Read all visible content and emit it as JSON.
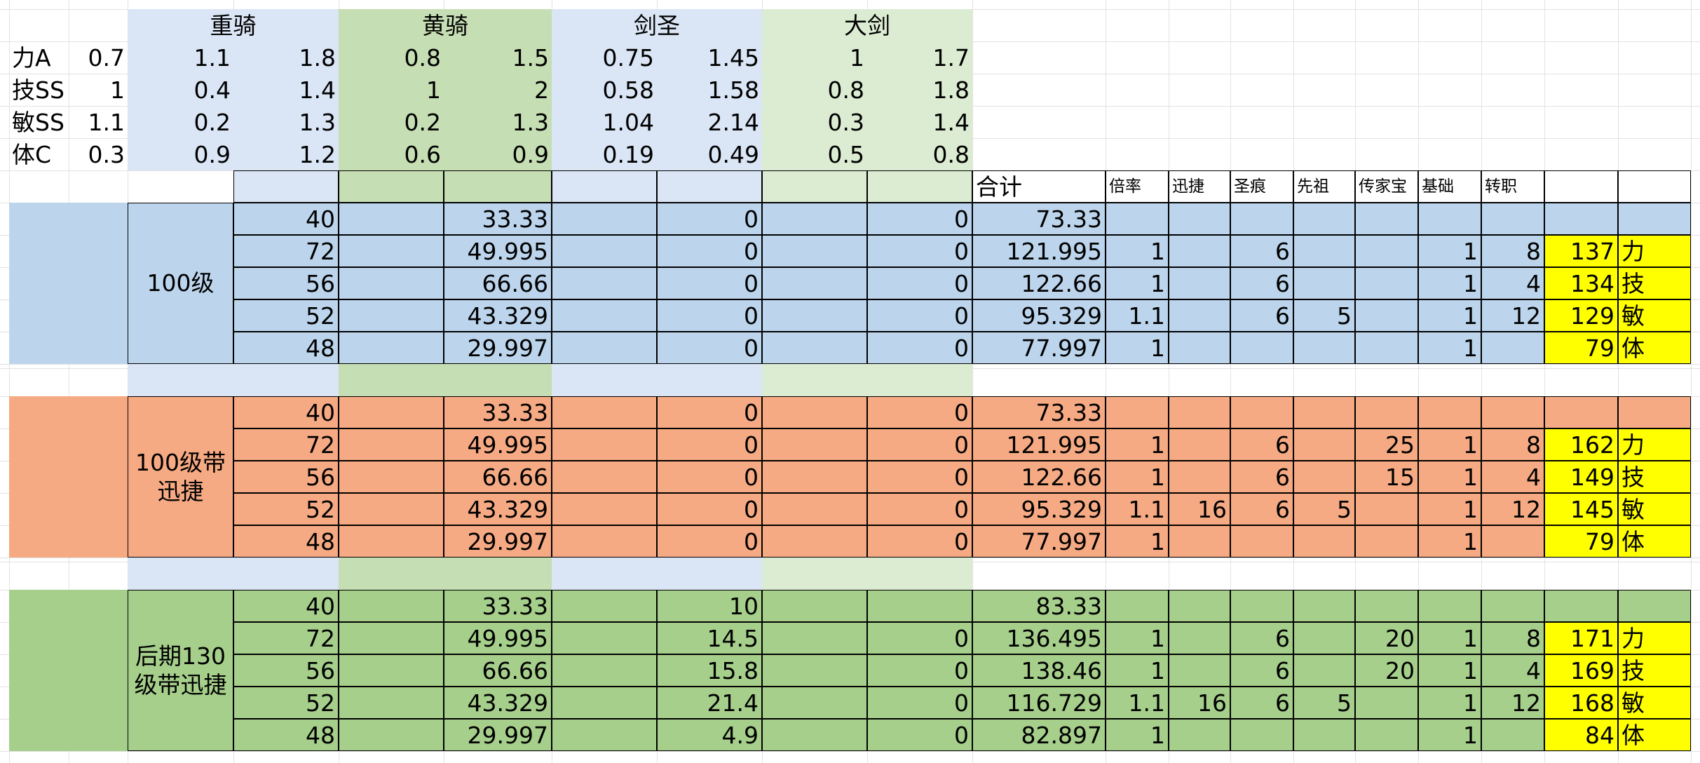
{
  "colors": {
    "blue_light": "#dae5f5",
    "green_light": "#c6deb3",
    "green_lighter": "#dcecd2",
    "blue_block": "#bcd5ec",
    "orange_block": "#f6aa83",
    "green_block": "#a6cf8b",
    "yellow": "#ffff00",
    "grid": "#e2e2e2",
    "border": "#000000"
  },
  "header": {
    "classes": [
      "重骑",
      "黄骑",
      "剑圣",
      "大剑"
    ]
  },
  "attributes": [
    {
      "label": "力A",
      "coef": "0.7",
      "vals": [
        "1.1",
        "1.8",
        "0.8",
        "1.5",
        "0.75",
        "1.45",
        "1",
        "1.7"
      ]
    },
    {
      "label": "技SS",
      "coef": "1",
      "vals": [
        "0.4",
        "1.4",
        "1",
        "2",
        "0.58",
        "1.58",
        "0.8",
        "1.8"
      ]
    },
    {
      "label": "敏SS",
      "coef": "1.1",
      "vals": [
        "0.2",
        "1.3",
        "0.2",
        "1.3",
        "1.04",
        "2.14",
        "0.3",
        "1.4"
      ]
    },
    {
      "label": "体C",
      "coef": "0.3",
      "vals": [
        "0.9",
        "1.2",
        "0.6",
        "0.9",
        "0.19",
        "0.49",
        "0.5",
        "0.8"
      ]
    }
  ],
  "columns": {
    "total": "合计",
    "mult": "倍率",
    "swift": "迅捷",
    "mark": "圣痕",
    "ancestor": "先祖",
    "heirloom": "传家宝",
    "base": "基础",
    "job": "转职"
  },
  "blocks": [
    {
      "label": "100级",
      "rows": [
        {
          "a": "40",
          "b": "33.33",
          "c": "0",
          "d": "0",
          "total": "73.33",
          "mult": "",
          "swift": "",
          "mark": "",
          "anc": "",
          "heir": "",
          "base": "",
          "job": "",
          "result": "",
          "attr": ""
        },
        {
          "a": "72",
          "b": "49.995",
          "c": "0",
          "d": "0",
          "total": "121.995",
          "mult": "1",
          "swift": "",
          "mark": "6",
          "anc": "",
          "heir": "",
          "base": "1",
          "job": "8",
          "result": "137",
          "attr": "力"
        },
        {
          "a": "56",
          "b": "66.66",
          "c": "0",
          "d": "0",
          "total": "122.66",
          "mult": "1",
          "swift": "",
          "mark": "6",
          "anc": "",
          "heir": "",
          "base": "1",
          "job": "4",
          "result": "134",
          "attr": "技"
        },
        {
          "a": "52",
          "b": "43.329",
          "c": "0",
          "d": "0",
          "total": "95.329",
          "mult": "1.1",
          "swift": "",
          "mark": "6",
          "anc": "5",
          "heir": "",
          "base": "1",
          "job": "12",
          "result": "129",
          "attr": "敏"
        },
        {
          "a": "48",
          "b": "29.997",
          "c": "0",
          "d": "0",
          "total": "77.997",
          "mult": "1",
          "swift": "",
          "mark": "",
          "anc": "",
          "heir": "",
          "base": "1",
          "job": "",
          "result": "79",
          "attr": "体"
        }
      ]
    },
    {
      "label": "100级带迅捷",
      "rows": [
        {
          "a": "40",
          "b": "33.33",
          "c": "0",
          "d": "0",
          "total": "73.33",
          "mult": "",
          "swift": "",
          "mark": "",
          "anc": "",
          "heir": "",
          "base": "",
          "job": "",
          "result": "",
          "attr": ""
        },
        {
          "a": "72",
          "b": "49.995",
          "c": "0",
          "d": "0",
          "total": "121.995",
          "mult": "1",
          "swift": "",
          "mark": "6",
          "anc": "",
          "heir": "25",
          "base": "1",
          "job": "8",
          "result": "162",
          "attr": "力"
        },
        {
          "a": "56",
          "b": "66.66",
          "c": "0",
          "d": "0",
          "total": "122.66",
          "mult": "1",
          "swift": "",
          "mark": "6",
          "anc": "",
          "heir": "15",
          "base": "1",
          "job": "4",
          "result": "149",
          "attr": "技"
        },
        {
          "a": "52",
          "b": "43.329",
          "c": "0",
          "d": "0",
          "total": "95.329",
          "mult": "1.1",
          "swift": "16",
          "mark": "6",
          "anc": "5",
          "heir": "",
          "base": "1",
          "job": "12",
          "result": "145",
          "attr": "敏"
        },
        {
          "a": "48",
          "b": "29.997",
          "c": "0",
          "d": "0",
          "total": "77.997",
          "mult": "1",
          "swift": "",
          "mark": "",
          "anc": "",
          "heir": "",
          "base": "1",
          "job": "",
          "result": "79",
          "attr": "体"
        }
      ]
    },
    {
      "label": "后期130级带迅捷",
      "rows": [
        {
          "a": "40",
          "b": "33.33",
          "c": "10",
          "d": "",
          "total": "83.33",
          "mult": "",
          "swift": "",
          "mark": "",
          "anc": "",
          "heir": "",
          "base": "",
          "job": "",
          "result": "",
          "attr": ""
        },
        {
          "a": "72",
          "b": "49.995",
          "c": "14.5",
          "d": "0",
          "total": "136.495",
          "mult": "1",
          "swift": "",
          "mark": "6",
          "anc": "",
          "heir": "20",
          "base": "1",
          "job": "8",
          "result": "171",
          "attr": "力"
        },
        {
          "a": "56",
          "b": "66.66",
          "c": "15.8",
          "d": "0",
          "total": "138.46",
          "mult": "1",
          "swift": "",
          "mark": "6",
          "anc": "",
          "heir": "20",
          "base": "1",
          "job": "4",
          "result": "169",
          "attr": "技"
        },
        {
          "a": "52",
          "b": "43.329",
          "c": "21.4",
          "d": "0",
          "total": "116.729",
          "mult": "1.1",
          "swift": "16",
          "mark": "6",
          "anc": "5",
          "heir": "",
          "base": "1",
          "job": "12",
          "result": "168",
          "attr": "敏"
        },
        {
          "a": "48",
          "b": "29.997",
          "c": "4.9",
          "d": "0",
          "total": "82.897",
          "mult": "1",
          "swift": "",
          "mark": "",
          "anc": "",
          "heir": "",
          "base": "1",
          "job": "",
          "result": "84",
          "attr": "体"
        }
      ]
    }
  ]
}
